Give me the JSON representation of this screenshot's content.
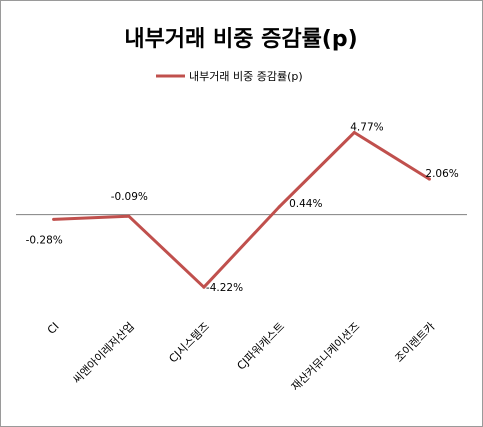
{
  "chart_data": {
    "type": "line",
    "title": "내부거래 비중 증감률(p)",
    "categories": [
      "CI",
      "씨앤아이레저산업",
      "CJ시스템즈",
      "CJ파워캐스트",
      "재산커뮤니케이션즈",
      "조이렌트카"
    ],
    "series": [
      {
        "name": "내부거래 비중 증감률(p)",
        "values": [
          -0.28,
          -0.09,
          -4.22,
          0.44,
          4.77,
          2.06
        ],
        "labels": [
          "-0.28%",
          "-0.09%",
          "-4.22%",
          "0.44%",
          "4.77%",
          "2.06%"
        ],
        "color": "#c0504d"
      }
    ],
    "xlabel": "",
    "ylabel": "",
    "ylim": [
      -5.6,
      6.6
    ],
    "grid": false,
    "legend": "top-center",
    "axis_color": "#808080"
  }
}
